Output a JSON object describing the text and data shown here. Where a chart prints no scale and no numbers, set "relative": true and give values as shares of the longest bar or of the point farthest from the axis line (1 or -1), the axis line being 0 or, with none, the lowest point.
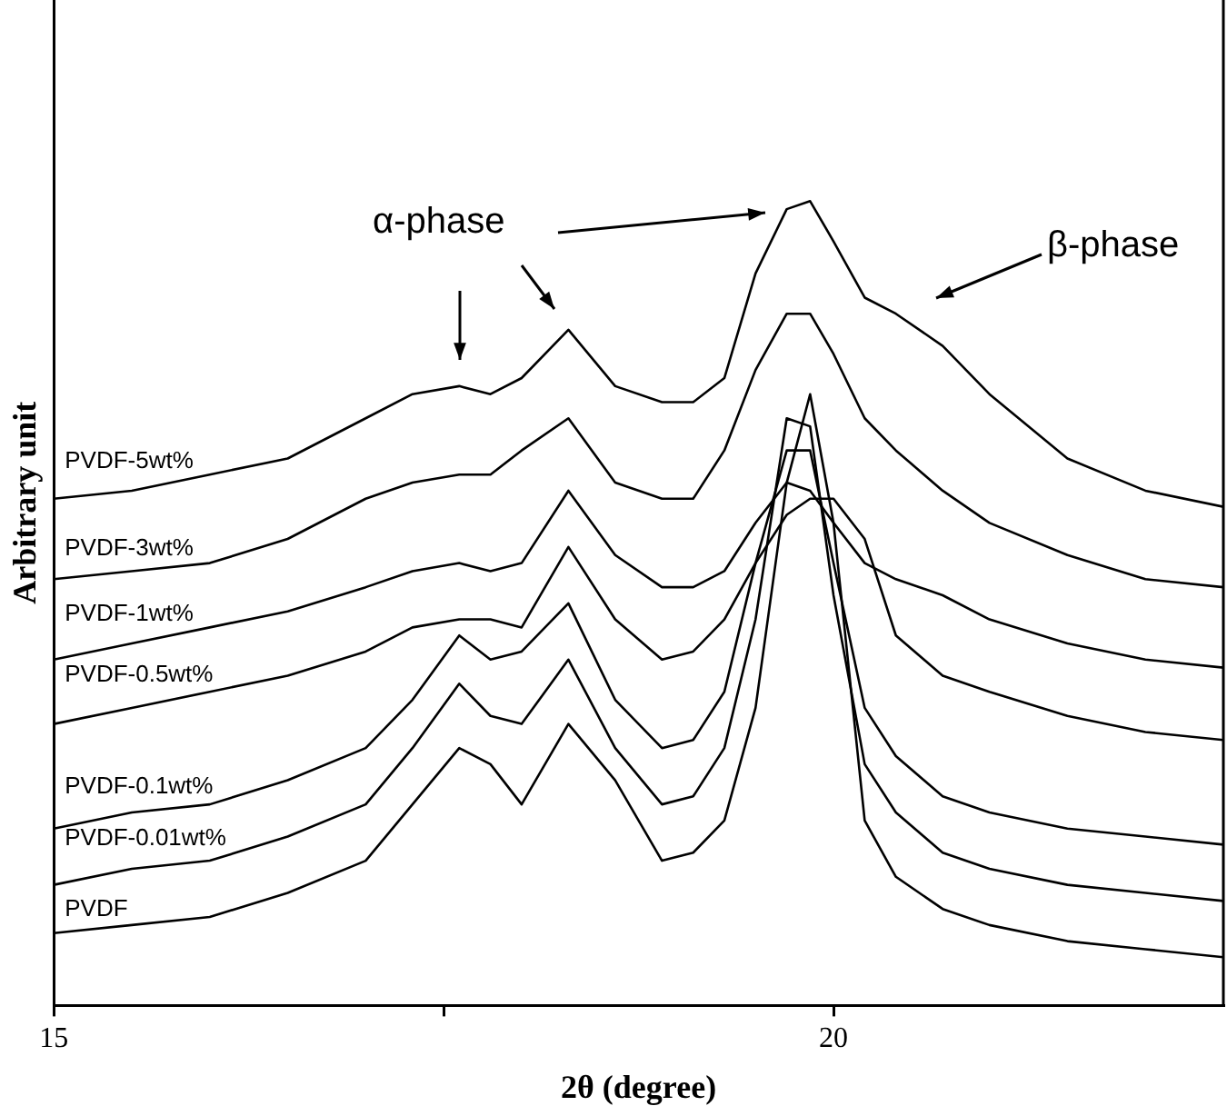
{
  "chart_data": {
    "type": "line",
    "relative": true,
    "xlabel": "2θ (degree)",
    "ylabel": "Arbitrary unit",
    "x": [
      15,
      15.5,
      16,
      16.5,
      17,
      17.3,
      17.6,
      17.8,
      18.0,
      18.3,
      18.6,
      18.9,
      19.1,
      19.3,
      19.5,
      19.7,
      19.85,
      20.0,
      20.2,
      20.4,
      20.7,
      21,
      21.5,
      22,
      22.5
    ],
    "xlim": [
      15,
      22.5
    ],
    "xticks": [
      15,
      {
        "value": 17.5,
        "label": null
      },
      20
    ],
    "series": [
      {
        "name": "PVDF-5wt%",
        "color": "#000000",
        "values": [
          0.63,
          0.64,
          0.66,
          0.68,
          0.73,
          0.76,
          0.77,
          0.76,
          0.78,
          0.84,
          0.77,
          0.75,
          0.75,
          0.78,
          0.91,
          0.99,
          1.0,
          0.95,
          0.88,
          0.86,
          0.82,
          0.76,
          0.68,
          0.64,
          0.62
        ]
      },
      {
        "name": "PVDF-3wt%",
        "color": "#000000",
        "values": [
          0.53,
          0.54,
          0.55,
          0.58,
          0.63,
          0.65,
          0.66,
          0.66,
          0.69,
          0.73,
          0.65,
          0.63,
          0.63,
          0.69,
          0.79,
          0.86,
          0.86,
          0.81,
          0.73,
          0.69,
          0.64,
          0.6,
          0.56,
          0.53,
          0.52
        ]
      },
      {
        "name": "PVDF-1wt%",
        "color": "#000000",
        "values": [
          0.43,
          0.45,
          0.47,
          0.49,
          0.52,
          0.54,
          0.55,
          0.54,
          0.55,
          0.64,
          0.56,
          0.52,
          0.52,
          0.54,
          0.6,
          0.65,
          0.64,
          0.6,
          0.55,
          0.53,
          0.51,
          0.48,
          0.45,
          0.43,
          0.42
        ]
      },
      {
        "name": "PVDF-0.5wt%",
        "color": "#000000",
        "values": [
          0.35,
          0.37,
          0.39,
          0.41,
          0.44,
          0.47,
          0.48,
          0.48,
          0.47,
          0.57,
          0.48,
          0.43,
          0.44,
          0.48,
          0.55,
          0.61,
          0.63,
          0.63,
          0.58,
          0.46,
          0.41,
          0.39,
          0.36,
          0.34,
          0.33
        ]
      },
      {
        "name": "PVDF-0.1wt%",
        "color": "#000000",
        "values": [
          0.22,
          0.24,
          0.25,
          0.28,
          0.32,
          0.38,
          0.46,
          0.43,
          0.44,
          0.5,
          0.38,
          0.32,
          0.33,
          0.39,
          0.55,
          0.69,
          0.69,
          0.55,
          0.37,
          0.31,
          0.26,
          0.24,
          0.22,
          0.21,
          0.2
        ]
      },
      {
        "name": "PVDF-0.01wt%",
        "color": "#000000",
        "values": [
          0.15,
          0.17,
          0.18,
          0.21,
          0.25,
          0.32,
          0.4,
          0.36,
          0.35,
          0.43,
          0.32,
          0.25,
          0.26,
          0.32,
          0.48,
          0.73,
          0.72,
          0.51,
          0.3,
          0.24,
          0.19,
          0.17,
          0.15,
          0.14,
          0.13
        ]
      },
      {
        "name": "PVDF",
        "color": "#000000",
        "values": [
          0.09,
          0.1,
          0.11,
          0.14,
          0.18,
          0.25,
          0.32,
          0.3,
          0.25,
          0.35,
          0.28,
          0.18,
          0.19,
          0.23,
          0.37,
          0.65,
          0.76,
          0.6,
          0.23,
          0.16,
          0.12,
          0.1,
          0.08,
          0.07,
          0.06
        ]
      }
    ],
    "annotations": [
      "α-phase",
      "β-phase"
    ],
    "grid": false,
    "legend": false,
    "marker": "none",
    "line_style": "solid"
  }
}
